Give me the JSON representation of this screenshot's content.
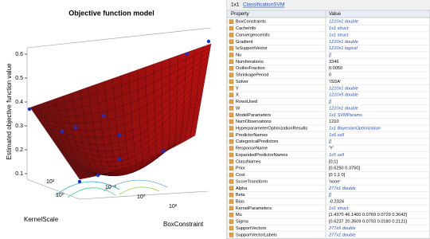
{
  "plot": {
    "title": "Objective function model",
    "zlabel": "Estimated objective function value",
    "xlabel": "KernelScale",
    "ylabel": "BoxConstraint",
    "zlim": [
      0.1,
      0.6
    ],
    "zticks": [
      0.1,
      0.2,
      0.3,
      0.4,
      0.5,
      0.6
    ],
    "kernel_ticks": [
      "10²",
      "10⁰"
    ],
    "box_ticks": [
      "10⁻²",
      "10⁰",
      "10²"
    ]
  },
  "panel": {
    "size": "1x1",
    "class": "ClassificationSVM",
    "columns": [
      "Property",
      "Value"
    ],
    "rows": [
      [
        "BoxConstraints",
        "1210x1 double"
      ],
      [
        "CacheInfo",
        "1x1 struct"
      ],
      [
        "ConvergenceInfo",
        "1x1 struct"
      ],
      [
        "Gradient",
        "1210x1 double"
      ],
      [
        "IsSupportVector",
        "1210x1 logical"
      ],
      [
        "Nu",
        "[]"
      ],
      [
        "NumIterations",
        "3346"
      ],
      [
        "OutlierFraction",
        "0.0050"
      ],
      [
        "ShrinkagePeriod",
        "0"
      ],
      [
        "Solver",
        "'ISDA'"
      ],
      [
        "Y",
        "1210x1 double"
      ],
      [
        "X",
        "1210x5 double"
      ],
      [
        "RowsUsed",
        "[]"
      ],
      [
        "W",
        "1210x1 double"
      ],
      [
        "ModelParameters",
        "1x1 SVMParams"
      ],
      [
        "NumObservations",
        "1210"
      ],
      [
        "HyperparameterOptimizationResults",
        "1x1 BayesianOptimization"
      ],
      [
        "PredictorNames",
        "1x5 cell"
      ],
      [
        "CategoricalPredictors",
        "[]"
      ],
      [
        "ResponseName",
        "'Y'"
      ],
      [
        "ExpandedPredictorNames",
        "1x5 cell"
      ],
      [
        "ClassNames",
        "[0;1]"
      ],
      [
        "Prior",
        "[0.6250 0.3750]"
      ],
      [
        "Cost",
        "[0 1;1 0]"
      ],
      [
        "ScoreTransform",
        "'none'"
      ],
      [
        "Alpha",
        "277x1 double"
      ],
      [
        "Beta",
        "[]"
      ],
      [
        "Bias",
        "-0.2324"
      ],
      [
        "KernelParameters",
        "1x1 struct"
      ],
      [
        "Mu",
        "[1.4370 46.1400 0.0769 0.0729 0.3642]"
      ],
      [
        "Sigma",
        "[0.6237 20.3509 0.0793 0.0180 0.2121]"
      ],
      [
        "SupportVectors",
        "277x5 double"
      ],
      [
        "SupportVectorLabels",
        "277x1 double"
      ]
    ]
  }
}
